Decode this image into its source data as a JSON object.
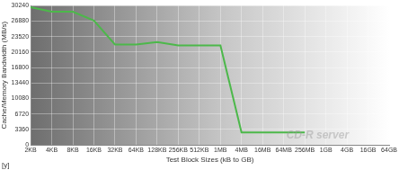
{
  "chart_data": {
    "type": "line",
    "x_label": "Test Block Sizes (kB to GB)",
    "y_label": "Cache/Memory Bandwidth (MB/s)",
    "categories": [
      "2KB",
      "4KB",
      "8KB",
      "16KB",
      "32KB",
      "64KB",
      "128KB",
      "256KB",
      "512KB",
      "1MB",
      "4MB",
      "16MB",
      "64MB",
      "256MB",
      "1GB",
      "4GB",
      "16GB",
      "64GB"
    ],
    "values": [
      29900,
      28900,
      28900,
      27000,
      21800,
      21800,
      22300,
      21600,
      21600,
      21600,
      2700,
      2700,
      2700,
      2700,
      null,
      null,
      null,
      null
    ],
    "color": "#4cb84a",
    "ylim": [
      0,
      30240
    ],
    "yticks": [
      0,
      3360,
      6720,
      10080,
      13440,
      16800,
      20160,
      23520,
      26880,
      30240
    ],
    "grid": true,
    "annotations": [
      "[y]",
      "CD-R server"
    ]
  }
}
